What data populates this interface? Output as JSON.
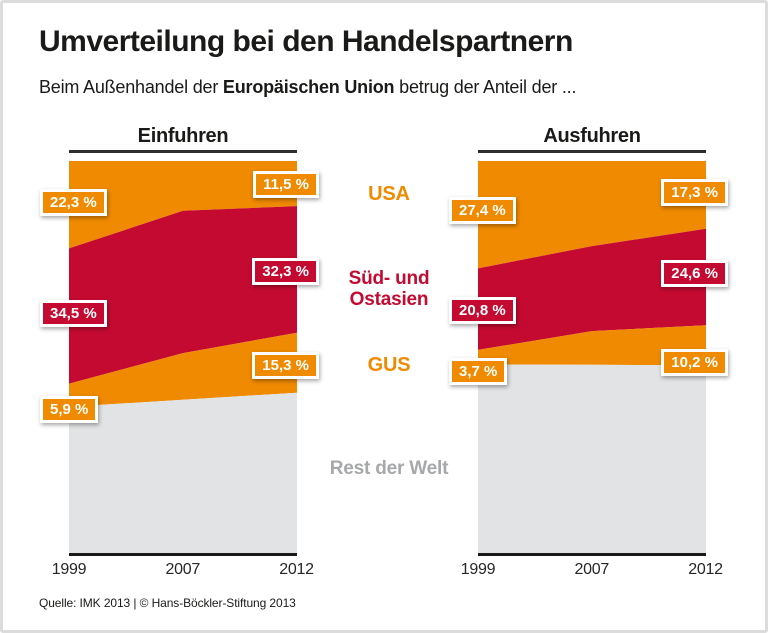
{
  "header": {
    "title": "Umverteilung bei den Handelspartnern",
    "subtitle_prefix": "Beim Außenhandel der ",
    "subtitle_bold": "Europäischen Union",
    "subtitle_suffix": " betrug der Anteil der ..."
  },
  "colors": {
    "orange": "#F08A00",
    "red": "#C50A31",
    "rest_area": "#E2E3E4",
    "rest_text": "#A6A8A9"
  },
  "legend": {
    "usa": "USA",
    "asia": "Süd- und\nOstasien",
    "gus": "GUS",
    "rest": "Rest der Welt"
  },
  "footer": {
    "source": "Quelle: IMK 2013 | © Hans-Böckler-Stiftung 2013"
  },
  "chart_data": [
    {
      "type": "area",
      "title": "Einfuhren",
      "x": [
        "1999",
        "2007",
        "2012"
      ],
      "stacking": "top-to-bottom, percent of total, 2007 values estimated from plot",
      "ylim": [
        0,
        100
      ],
      "series": [
        {
          "name": "USA",
          "color": "#F08A00",
          "values": [
            22.3,
            12.7,
            11.5
          ]
        },
        {
          "name": "Süd- und Ostasien",
          "color": "#C50A31",
          "values": [
            34.5,
            36.3,
            32.3
          ]
        },
        {
          "name": "GUS",
          "color": "#F08A00",
          "values": [
            5.9,
            11.9,
            15.3
          ]
        },
        {
          "name": "Rest der Welt",
          "color": "#E2E3E4",
          "values": [
            37.3,
            39.1,
            40.9
          ]
        }
      ],
      "labels": [
        {
          "text": "22,3 %",
          "series": 0,
          "side": "left",
          "y_pct": 10.6
        },
        {
          "text": "34,5 %",
          "series": 1,
          "side": "left",
          "y_pct": 38.8
        },
        {
          "text": "5,9 %",
          "series": 2,
          "side": "left",
          "y_pct": 63.4
        },
        {
          "text": "11,5 %",
          "series": 0,
          "side": "right",
          "y_pct": 5.9
        },
        {
          "text": "32,3 %",
          "series": 1,
          "side": "right",
          "y_pct": 28.1
        },
        {
          "text": "15,3 %",
          "series": 2,
          "side": "right",
          "y_pct": 52.2
        }
      ]
    },
    {
      "type": "area",
      "title": "Ausfuhren",
      "x": [
        "1999",
        "2007",
        "2012"
      ],
      "stacking": "top-to-bottom, percent of total, 2007 values estimated from plot",
      "ylim": [
        0,
        100
      ],
      "series": [
        {
          "name": "USA",
          "color": "#F08A00",
          "values": [
            27.4,
            21.7,
            17.3
          ]
        },
        {
          "name": "Süd- und Ostasien",
          "color": "#C50A31",
          "values": [
            20.8,
            21.7,
            24.6
          ]
        },
        {
          "name": "GUS",
          "color": "#F08A00",
          "values": [
            3.7,
            8.6,
            10.2
          ]
        },
        {
          "name": "Rest der Welt",
          "color": "#E2E3E4",
          "values": [
            48.1,
            48.0,
            47.9
          ]
        }
      ],
      "labels": [
        {
          "text": "27,4 %",
          "series": 0,
          "side": "left",
          "y_pct": 12.6
        },
        {
          "text": "20,8 %",
          "series": 1,
          "side": "left",
          "y_pct": 38.1
        },
        {
          "text": "3,7 %",
          "series": 2,
          "side": "left",
          "y_pct": 53.6
        },
        {
          "text": "17,3 %",
          "series": 0,
          "side": "right",
          "y_pct": 8.0
        },
        {
          "text": "24,6 %",
          "series": 1,
          "side": "right",
          "y_pct": 28.7
        },
        {
          "text": "10,2 %",
          "series": 2,
          "side": "right",
          "y_pct": 51.4
        }
      ]
    }
  ],
  "layout_note": "two stacked 100%-area charts sharing a central legend column"
}
